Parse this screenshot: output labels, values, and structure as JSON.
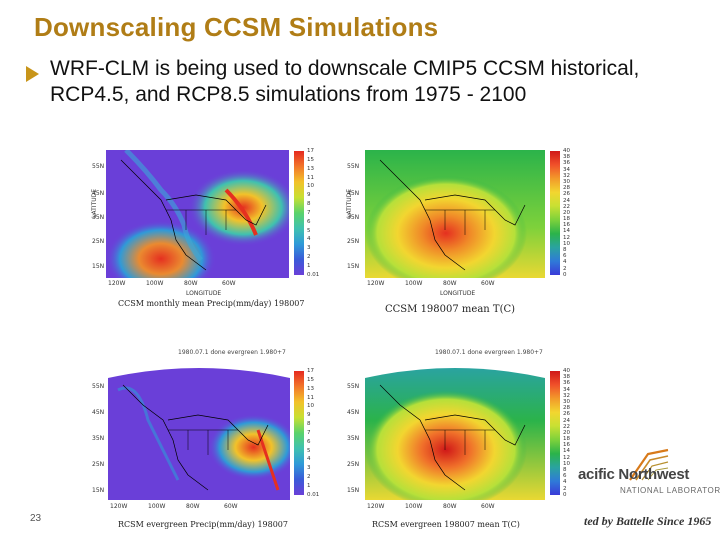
{
  "slide": {
    "title": "Downscaling CCSM Simulations",
    "bullet": "WRF-CLM is being used to downscale CMIP5 CCSM historical, RCP4.5, and RCP8.5 simulations from 1975 - 2100",
    "slide_number": "23"
  },
  "figures": {
    "top_left": {
      "caption": "CCSM monthly mean Precip(mm/day) 198007",
      "y_ticks": [
        "55N",
        "45N",
        "35N",
        "25N",
        "15N"
      ],
      "x_ticks": [
        "120W",
        "100W",
        "80W",
        "60W"
      ],
      "y_axis": "LATITUDE",
      "x_axis": "LONGITUDE",
      "colorbar": [
        "17",
        "15",
        "13",
        "11",
        "10",
        "9",
        "8",
        "7",
        "6",
        "5",
        "4",
        "3",
        "2",
        "1",
        "0.01"
      ]
    },
    "top_right": {
      "caption": "CCSM 198007 mean T(C)",
      "y_ticks": [
        "55N",
        "45N",
        "35N",
        "25N",
        "15N"
      ],
      "x_ticks": [
        "120W",
        "100W",
        "80W",
        "60W"
      ],
      "y_axis": "LATITUDE",
      "x_axis": "LONGITUDE",
      "colorbar": [
        "40",
        "38",
        "36",
        "34",
        "32",
        "30",
        "28",
        "26",
        "24",
        "22",
        "20",
        "18",
        "16",
        "14",
        "12",
        "10",
        "8",
        "6",
        "4",
        "2",
        "0"
      ]
    },
    "bottom_left": {
      "caption": "RCSM evergreen Precip(mm/day) 198007",
      "header": "1980.07.1 done evergreen 1.980+7",
      "y_ticks": [
        "55N",
        "45N",
        "35N",
        "25N",
        "15N"
      ],
      "x_ticks": [
        "120W",
        "100W",
        "80W",
        "60W"
      ],
      "colorbar": [
        "17",
        "15",
        "13",
        "11",
        "10",
        "9",
        "8",
        "7",
        "6",
        "5",
        "4",
        "3",
        "2",
        "1",
        "0.01"
      ]
    },
    "bottom_right": {
      "caption": "RCSM evergreen 198007 mean T(C)",
      "header": "1980.07.1 done evergreen 1.980+7",
      "y_ticks": [
        "55N",
        "45N",
        "35N",
        "25N",
        "15N"
      ],
      "x_ticks": [
        "120W",
        "100W",
        "80W",
        "60W"
      ],
      "colorbar": [
        "40",
        "38",
        "36",
        "34",
        "32",
        "30",
        "28",
        "26",
        "24",
        "22",
        "20",
        "18",
        "16",
        "14",
        "12",
        "10",
        "8",
        "6",
        "4",
        "2",
        "0"
      ]
    }
  },
  "logo": {
    "line1": "acific Northwest",
    "line2": "NATIONAL LABORATORY",
    "line3": "ted by Battelle Since 1965"
  },
  "colors": {
    "title": "#b07d16",
    "bullet_arrow": "#c8951a",
    "precip_bg": "#6a3fd8",
    "temp_bg": "#2bb34a"
  }
}
